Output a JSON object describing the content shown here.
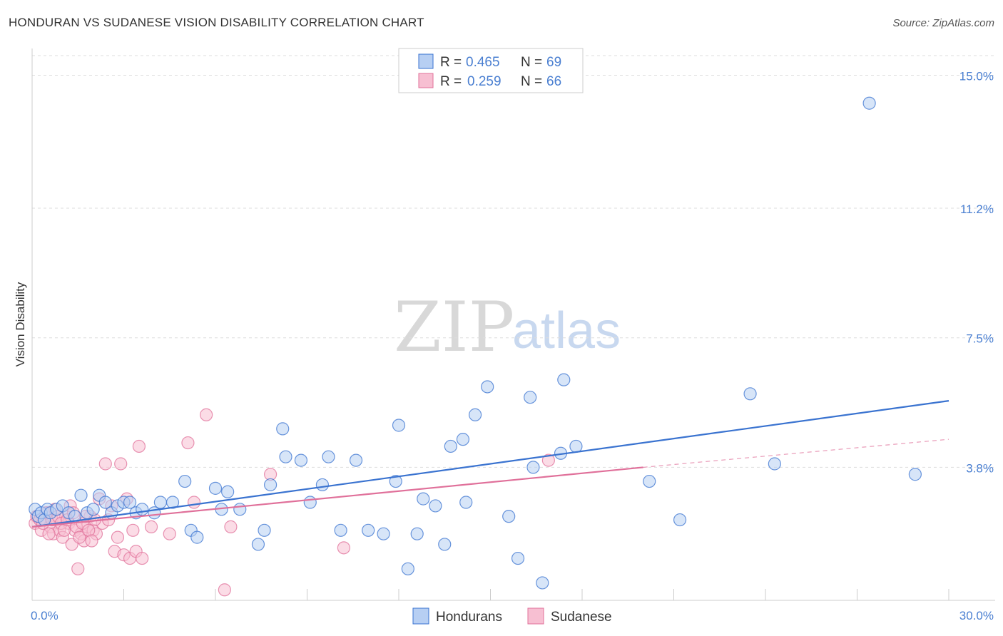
{
  "title": "HONDURAN VS SUDANESE VISION DISABILITY CORRELATION CHART",
  "source": "Source: ZipAtlas.com",
  "watermark": {
    "zip": "ZIP",
    "atlas": "atlas"
  },
  "colors": {
    "hondurans": "#3a73d0",
    "hondurans_fill": "#b7cff3",
    "sudanese": "#e0709a",
    "sudanese_fill": "#f7bfd2",
    "grid": "#dddddd",
    "tick_label": "#4a7fd1"
  },
  "legend": {
    "rows": [
      {
        "r_label": "R =",
        "r_value": "0.465",
        "n_label": "N =",
        "n_value": "69"
      },
      {
        "r_label": "R =",
        "r_value": "0.259",
        "n_label": "N =",
        "n_value": "66"
      }
    ]
  },
  "chart_data": {
    "type": "scatter",
    "title": "HONDURAN VS SUDANESE VISION DISABILITY CORRELATION CHART",
    "xlabel": "",
    "ylabel": "Vision Disability",
    "xlim": [
      0,
      30
    ],
    "ylim": [
      0,
      15.6
    ],
    "x_tick_labels": [
      "0.0%",
      "30.0%"
    ],
    "y_ticks": [
      3.8,
      7.5,
      11.2,
      15.0
    ],
    "y_tick_labels": [
      "3.8%",
      "7.5%",
      "11.2%",
      "15.0%"
    ],
    "grid": true,
    "legend_position": "top-center",
    "series": [
      {
        "name": "Hondurans",
        "trend": {
          "x": [
            0,
            30
          ],
          "y": [
            2.1,
            5.7
          ]
        },
        "points": [
          [
            0.1,
            2.6
          ],
          [
            0.2,
            2.4
          ],
          [
            0.3,
            2.5
          ],
          [
            0.4,
            2.3
          ],
          [
            0.5,
            2.6
          ],
          [
            0.6,
            2.5
          ],
          [
            0.8,
            2.6
          ],
          [
            1.0,
            2.7
          ],
          [
            1.2,
            2.5
          ],
          [
            1.4,
            2.4
          ],
          [
            1.6,
            3.0
          ],
          [
            1.8,
            2.5
          ],
          [
            2.0,
            2.6
          ],
          [
            2.2,
            3.0
          ],
          [
            2.4,
            2.8
          ],
          [
            2.6,
            2.5
          ],
          [
            2.8,
            2.7
          ],
          [
            3.0,
            2.8
          ],
          [
            3.2,
            2.8
          ],
          [
            3.4,
            2.5
          ],
          [
            3.6,
            2.6
          ],
          [
            4.0,
            2.5
          ],
          [
            4.2,
            2.8
          ],
          [
            4.6,
            2.8
          ],
          [
            5.0,
            3.4
          ],
          [
            5.2,
            2.0
          ],
          [
            5.4,
            1.8
          ],
          [
            6.0,
            3.2
          ],
          [
            6.2,
            2.6
          ],
          [
            6.4,
            3.1
          ],
          [
            6.8,
            2.6
          ],
          [
            7.4,
            1.6
          ],
          [
            7.6,
            2.0
          ],
          [
            7.8,
            3.3
          ],
          [
            8.2,
            4.9
          ],
          [
            8.3,
            4.1
          ],
          [
            8.8,
            4.0
          ],
          [
            9.1,
            2.8
          ],
          [
            9.5,
            3.3
          ],
          [
            9.7,
            4.1
          ],
          [
            10.1,
            2.0
          ],
          [
            10.6,
            4.0
          ],
          [
            11.0,
            2.0
          ],
          [
            11.5,
            1.9
          ],
          [
            11.9,
            3.4
          ],
          [
            12.0,
            5.0
          ],
          [
            12.3,
            0.9
          ],
          [
            12.6,
            1.9
          ],
          [
            12.8,
            2.9
          ],
          [
            13.2,
            2.7
          ],
          [
            13.5,
            1.6
          ],
          [
            13.7,
            4.4
          ],
          [
            14.1,
            4.6
          ],
          [
            14.2,
            2.8
          ],
          [
            14.5,
            5.3
          ],
          [
            14.9,
            6.1
          ],
          [
            15.6,
            2.4
          ],
          [
            15.9,
            1.2
          ],
          [
            16.3,
            5.8
          ],
          [
            16.4,
            3.8
          ],
          [
            16.7,
            0.5
          ],
          [
            17.3,
            4.2
          ],
          [
            17.4,
            6.3
          ],
          [
            17.8,
            4.4
          ],
          [
            20.2,
            3.4
          ],
          [
            21.2,
            2.3
          ],
          [
            23.5,
            5.9
          ],
          [
            24.3,
            3.9
          ],
          [
            27.4,
            14.2
          ],
          [
            28.9,
            3.6
          ]
        ]
      },
      {
        "name": "Sudanese",
        "trend": {
          "x": [
            0,
            20
          ],
          "y": [
            2.1,
            3.8
          ]
        },
        "trend_extension": {
          "x": [
            20,
            30
          ],
          "y": [
            3.8,
            4.6
          ]
        },
        "points": [
          [
            0.1,
            2.2
          ],
          [
            0.2,
            2.4
          ],
          [
            0.3,
            2.0
          ],
          [
            0.4,
            2.3
          ],
          [
            0.5,
            2.5
          ],
          [
            0.6,
            2.1
          ],
          [
            0.7,
            1.9
          ],
          [
            0.8,
            2.3
          ],
          [
            0.9,
            2.0
          ],
          [
            1.0,
            1.8
          ],
          [
            1.1,
            2.4
          ],
          [
            1.2,
            2.2
          ],
          [
            1.3,
            1.6
          ],
          [
            1.4,
            2.0
          ],
          [
            1.5,
            0.9
          ],
          [
            1.6,
            1.9
          ],
          [
            1.7,
            1.7
          ],
          [
            1.8,
            2.1
          ],
          [
            1.9,
            2.4
          ],
          [
            2.0,
            2.0
          ],
          [
            2.1,
            1.9
          ],
          [
            2.2,
            2.9
          ],
          [
            2.3,
            2.2
          ],
          [
            2.4,
            3.9
          ],
          [
            2.5,
            2.3
          ],
          [
            2.6,
            2.7
          ],
          [
            2.7,
            1.4
          ],
          [
            2.8,
            1.8
          ],
          [
            2.9,
            3.9
          ],
          [
            3.0,
            1.3
          ],
          [
            3.1,
            2.9
          ],
          [
            3.2,
            1.2
          ],
          [
            3.3,
            2.0
          ],
          [
            3.4,
            1.4
          ],
          [
            3.5,
            4.4
          ],
          [
            3.6,
            1.2
          ],
          [
            3.9,
            2.1
          ],
          [
            4.5,
            1.9
          ],
          [
            5.1,
            4.5
          ],
          [
            5.3,
            2.8
          ],
          [
            5.7,
            5.3
          ],
          [
            6.3,
            0.3
          ],
          [
            6.5,
            2.1
          ],
          [
            7.8,
            3.6
          ],
          [
            10.2,
            1.5
          ],
          [
            16.9,
            4.0
          ],
          [
            0.15,
            2.4
          ],
          [
            0.25,
            2.3
          ],
          [
            0.35,
            2.2
          ],
          [
            0.45,
            2.5
          ],
          [
            0.55,
            1.9
          ],
          [
            0.65,
            2.3
          ],
          [
            0.75,
            2.6
          ],
          [
            0.85,
            2.4
          ],
          [
            0.95,
            2.2
          ],
          [
            1.05,
            2.0
          ],
          [
            1.15,
            2.3
          ],
          [
            1.25,
            2.7
          ],
          [
            1.35,
            2.5
          ],
          [
            1.45,
            2.1
          ],
          [
            1.55,
            1.8
          ],
          [
            1.65,
            2.2
          ],
          [
            1.75,
            2.4
          ],
          [
            1.85,
            2.0
          ],
          [
            1.95,
            1.7
          ],
          [
            2.05,
            2.3
          ]
        ]
      }
    ]
  }
}
